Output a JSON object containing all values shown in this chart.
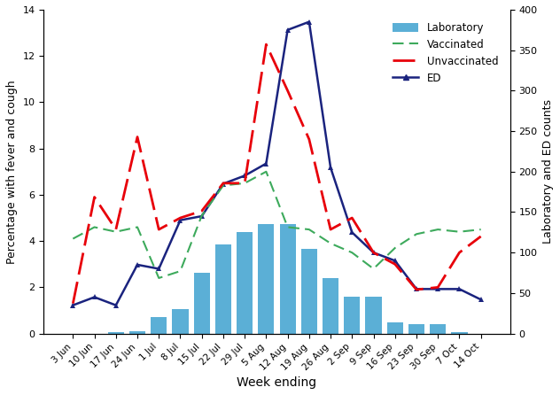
{
  "x_labels": [
    "3 Jun",
    "10 Jun",
    "17 Jun",
    "24 Jun",
    "1 Jul",
    "8 Jul",
    "15 Jul",
    "22 Jul",
    "29 Jul",
    "5 Aug",
    "12 Aug",
    "19 Aug",
    "26 Aug",
    "2 Sep",
    "9 Sep",
    "16 Sep",
    "23 Sep",
    "30 Sep",
    "7 Oct",
    "14 Oct"
  ],
  "vaccinated": [
    4.1,
    4.6,
    4.4,
    4.6,
    2.4,
    2.7,
    5.1,
    6.4,
    6.5,
    7.0,
    4.6,
    4.5,
    3.9,
    3.5,
    2.8,
    3.7,
    4.3,
    4.5,
    4.4,
    4.5
  ],
  "unvaccinated": [
    1.3,
    5.9,
    4.5,
    8.5,
    4.5,
    5.0,
    5.3,
    6.5,
    6.5,
    12.5,
    10.5,
    8.4,
    4.5,
    5.0,
    3.5,
    3.0,
    1.9,
    2.0,
    3.5,
    4.2
  ],
  "ed": [
    35,
    45,
    35,
    85,
    80,
    140,
    145,
    185,
    195,
    210,
    375,
    385,
    205,
    125,
    100,
    90,
    55,
    55,
    55,
    42
  ],
  "lab": [
    0,
    0,
    2,
    3,
    20,
    30,
    75,
    110,
    125,
    135,
    135,
    105,
    68,
    45,
    45,
    14,
    12,
    12,
    2,
    0
  ],
  "bar_color": "#5bafd6",
  "vaccinated_color": "#3daa5c",
  "unvaccinated_color": "#e8000a",
  "ed_color": "#1a237e",
  "ylabel_left": "Percentage with fever and cough",
  "ylabel_right": "Laboratory and ED counts",
  "xlabel": "Week ending",
  "ylim_left": [
    0,
    14
  ],
  "ylim_right": [
    0,
    400
  ],
  "yticks_left": [
    0,
    2,
    4,
    6,
    8,
    10,
    12,
    14
  ],
  "yticks_right": [
    0,
    50,
    100,
    150,
    200,
    250,
    300,
    350,
    400
  ]
}
